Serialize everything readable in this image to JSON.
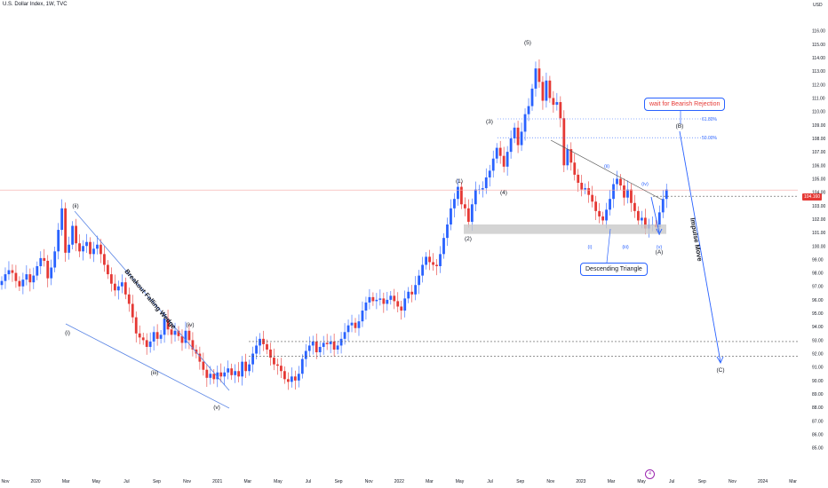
{
  "header": {
    "title": "U.S. Dollar Index, 1W, TVC",
    "currency": "USD"
  },
  "price_badge": "104.160",
  "chart_data": {
    "type": "candlestick",
    "symbol": "U.S. Dollar Index",
    "timeframe": "1W",
    "y_ticks": [
      "116.00",
      "115.00",
      "114.00",
      "113.00",
      "112.00",
      "111.00",
      "110.00",
      "109.00",
      "108.00",
      "107.00",
      "106.00",
      "105.00",
      "104.00",
      "103.00",
      "102.00",
      "101.00",
      "100.00",
      "99.00",
      "98.00",
      "97.00",
      "96.00",
      "95.00",
      "94.00",
      "93.00",
      "92.00",
      "91.00",
      "90.00",
      "89.00",
      "88.00",
      "87.00",
      "86.00",
      "85.00"
    ],
    "x_ticks": [
      "Nov",
      "2020",
      "Mar",
      "May",
      "Jul",
      "Sep",
      "Nov",
      "2021",
      "Mar",
      "May",
      "Jul",
      "Sep",
      "Nov",
      "2022",
      "Mar",
      "May",
      "Jul",
      "Sep",
      "Nov",
      "2023",
      "Mar",
      "May",
      "Jul",
      "Sep",
      "Nov",
      "2024",
      "Mar"
    ],
    "ylim": [
      84.5,
      117
    ],
    "closes": [
      97.4,
      97.9,
      98.2,
      98.0,
      97.4,
      97.0,
      97.5,
      97.9,
      97.3,
      97.8,
      98.5,
      99.1,
      98.9,
      97.6,
      98.4,
      99.6,
      101.2,
      102.8,
      99.5,
      100.1,
      101.5,
      100.2,
      99.6,
      100.0,
      100.3,
      99.4,
      99.8,
      100.1,
      99.4,
      98.6,
      97.9,
      97.2,
      96.7,
      97.0,
      97.3,
      96.4,
      95.7,
      94.7,
      93.5,
      93.2,
      93.0,
      92.5,
      92.9,
      93.6,
      93.1,
      93.4,
      94.6,
      93.8,
      93.4,
      93.7,
      93.3,
      92.8,
      93.7,
      93.0,
      92.3,
      92.0,
      91.4,
      90.8,
      90.2,
      90.5,
      90.1,
      90.6,
      90.3,
      90.6,
      90.9,
      90.4,
      90.7,
      90.3,
      91.4,
      90.7,
      91.2,
      92.0,
      92.6,
      93.1,
      92.7,
      92.3,
      91.7,
      91.2,
      91.1,
      90.7,
      90.1,
      89.9,
      90.3,
      90.0,
      90.5,
      91.6,
      92.2,
      92.6,
      92.9,
      92.1,
      92.5,
      92.8,
      92.7,
      92.9,
      92.3,
      92.6,
      93.1,
      93.6,
      94.1,
      94.3,
      93.9,
      94.4,
      95.2,
      95.8,
      96.2,
      95.9,
      96.0,
      96.1,
      95.7,
      96.0,
      96.3,
      95.9,
      95.5,
      95.2,
      96.1,
      96.6,
      96.4,
      97.1,
      97.8,
      98.6,
      99.2,
      98.8,
      98.6,
      98.5,
      99.4,
      100.6,
      101.6,
      102.8,
      103.5,
      104.4,
      103.1,
      102.8,
      101.8,
      103.1,
      104.2,
      104.2,
      104.3,
      105.1,
      105.6,
      106.5,
      107.3,
      106.7,
      105.9,
      107.0,
      108.0,
      108.8,
      107.5,
      108.5,
      109.8,
      110.4,
      111.7,
      113.2,
      112.2,
      110.8,
      112.3,
      111.0,
      110.5,
      110.7,
      109.5,
      106.0,
      107.2,
      106.2,
      105.3,
      104.7,
      104.2,
      104.3,
      103.8,
      103.3,
      102.6,
      102.2,
      101.9,
      102.7,
      103.5,
      104.6,
      105.0,
      104.5,
      103.6,
      104.2,
      103.2,
      102.6,
      101.9,
      102.1,
      101.3,
      101.6,
      101.6,
      101.4,
      102.5,
      103.5,
      104.2
    ],
    "ann_waves": [
      {
        "label": "(i)",
        "style": "wave"
      },
      {
        "label": "(ii)",
        "style": "wave"
      },
      {
        "label": "(iii)",
        "style": "wave"
      },
      {
        "label": "(iv)",
        "style": "wave"
      },
      {
        "label": "(v)",
        "style": "wave"
      },
      {
        "label": "(1)",
        "style": "wave"
      },
      {
        "label": "(2)",
        "style": "wave"
      },
      {
        "label": "(3)",
        "style": "wave"
      },
      {
        "label": "(4)",
        "style": "wave"
      },
      {
        "label": "(5)",
        "style": "wave"
      },
      {
        "label": "(i)",
        "style": "wave-blue"
      },
      {
        "label": "(ii)",
        "style": "wave-blue"
      },
      {
        "label": "(iii)",
        "style": "wave-blue"
      },
      {
        "label": "(iv)",
        "style": "wave-blue"
      },
      {
        "label": "(v)",
        "style": "wave-blue"
      },
      {
        "label": "(A)",
        "style": "wave"
      },
      {
        "label": "(B)",
        "style": "wave"
      },
      {
        "label": "(C)",
        "style": "wave"
      }
    ],
    "fib_levels": [
      {
        "label": "61.80%",
        "price": 109.45
      },
      {
        "label": "50.00%",
        "price": 108.05
      }
    ],
    "support_lines": [
      92.9,
      91.8
    ],
    "resistance_line": 103.7,
    "current_price_line": 104.16,
    "zone": [
      100.9,
      101.6
    ],
    "wedge_label": "Breakout Falling Wedge",
    "impulse_label": "Impulse Move",
    "triangle_label": "Descending Triangle",
    "rejection_label": "wait for Bearish Rejection",
    "colors": {
      "up": "#2962ff",
      "down": "#e53935",
      "line": "#5b86e5",
      "zone": "#c9c9c9"
    }
  }
}
